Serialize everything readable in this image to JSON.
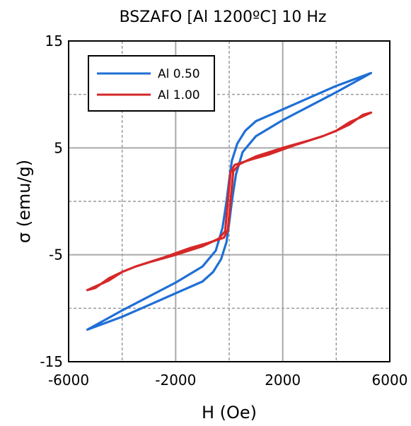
{
  "chart_data": {
    "type": "line",
    "title": "BSZAFO [Al 1200ºC] 10 Hz",
    "xlabel": "H (Oe)",
    "ylabel": "σ (emu/g)",
    "xlim": [
      -6000,
      6000
    ],
    "ylim": [
      -15,
      15
    ],
    "xticks": [
      -6000,
      -2000,
      2000,
      6000
    ],
    "yticks": [
      -15,
      -5,
      5,
      15
    ],
    "xgrid_minor": [
      -4000,
      0,
      4000
    ],
    "ygrid_minor": [
      -10,
      0,
      10
    ],
    "grid": true,
    "legend_position": "top-left",
    "series": [
      {
        "name": "Al 0.50",
        "color": "#1f6fd6",
        "upper_branch": [
          [
            -5300,
            -12.0
          ],
          [
            -4000,
            -10.2
          ],
          [
            -3000,
            -8.9
          ],
          [
            -2000,
            -7.6
          ],
          [
            -1000,
            -6.1
          ],
          [
            -500,
            -4.6
          ],
          [
            -250,
            -2.5
          ],
          [
            -100,
            0.0
          ],
          [
            0,
            2.0
          ],
          [
            100,
            3.8
          ],
          [
            300,
            5.4
          ],
          [
            600,
            6.6
          ],
          [
            1000,
            7.5
          ],
          [
            2000,
            8.6
          ],
          [
            3000,
            9.7
          ],
          [
            4000,
            10.8
          ],
          [
            5300,
            12.0
          ]
        ],
        "lower_branch": [
          [
            5300,
            12.0
          ],
          [
            4000,
            10.2
          ],
          [
            3000,
            8.9
          ],
          [
            2000,
            7.6
          ],
          [
            1000,
            6.1
          ],
          [
            500,
            4.6
          ],
          [
            250,
            2.5
          ],
          [
            100,
            0.0
          ],
          [
            0,
            -2.0
          ],
          [
            -100,
            -3.8
          ],
          [
            -300,
            -5.4
          ],
          [
            -600,
            -6.6
          ],
          [
            -1000,
            -7.5
          ],
          [
            -2000,
            -8.6
          ],
          [
            -3000,
            -9.7
          ],
          [
            -4000,
            -10.8
          ],
          [
            -5300,
            -12.0
          ]
        ]
      },
      {
        "name": "Al 1.00",
        "color": "#d62728",
        "upper_branch": [
          [
            -5300,
            -8.3
          ],
          [
            -5000,
            -8.1
          ],
          [
            -4500,
            -7.2
          ],
          [
            -4000,
            -6.6
          ],
          [
            -3500,
            -6.1
          ],
          [
            -3000,
            -5.7
          ],
          [
            -2000,
            -5.0
          ],
          [
            -1000,
            -4.2
          ],
          [
            -400,
            -3.5
          ],
          [
            -150,
            -2.8
          ],
          [
            -50,
            0.0
          ],
          [
            50,
            2.7
          ],
          [
            200,
            3.4
          ],
          [
            800,
            3.9
          ],
          [
            1500,
            4.4
          ],
          [
            2500,
            5.3
          ],
          [
            3500,
            6.1
          ],
          [
            4000,
            6.6
          ],
          [
            4500,
            7.4
          ],
          [
            5300,
            8.3
          ]
        ],
        "lower_branch": [
          [
            5300,
            8.3
          ],
          [
            5000,
            8.1
          ],
          [
            4500,
            7.2
          ],
          [
            4000,
            6.6
          ],
          [
            3500,
            6.1
          ],
          [
            3000,
            5.7
          ],
          [
            2000,
            5.0
          ],
          [
            1000,
            4.2
          ],
          [
            400,
            3.5
          ],
          [
            150,
            2.8
          ],
          [
            50,
            0.0
          ],
          [
            -50,
            -2.7
          ],
          [
            -200,
            -3.4
          ],
          [
            -800,
            -3.9
          ],
          [
            -1500,
            -4.4
          ],
          [
            -2500,
            -5.3
          ],
          [
            -3500,
            -6.1
          ],
          [
            -4000,
            -6.6
          ],
          [
            -4500,
            -7.4
          ],
          [
            -5300,
            -8.3
          ]
        ]
      }
    ]
  }
}
